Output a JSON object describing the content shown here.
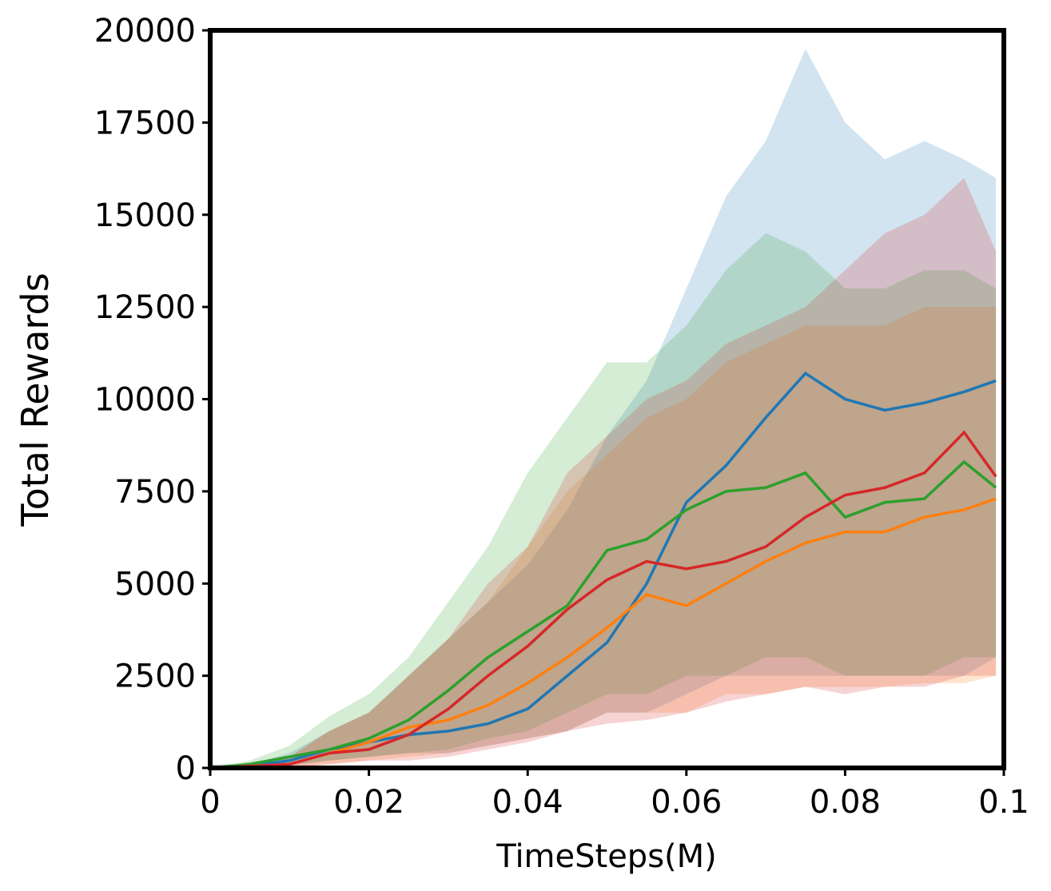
{
  "chart_data": {
    "type": "line",
    "x_label": "TimeSteps(M)",
    "y_label": "Total Rewards",
    "x": [
      0,
      0.005,
      0.01,
      0.015,
      0.02,
      0.025,
      0.03,
      0.035,
      0.04,
      0.045,
      0.05,
      0.055,
      0.06,
      0.065,
      0.07,
      0.075,
      0.08,
      0.085,
      0.09,
      0.095,
      0.099
    ],
    "xlim": [
      0,
      0.1
    ],
    "xticks": [
      0,
      0.02,
      0.04,
      0.06,
      0.08,
      0.1
    ],
    "ylim": [
      0,
      20000
    ],
    "yticks": [
      0,
      2500,
      5000,
      7500,
      10000,
      12500,
      15000,
      17500,
      20000
    ],
    "grid": false,
    "series": [
      {
        "color": "#1f77b4",
        "values": [
          0,
          50,
          200,
          500,
          700,
          900,
          1000,
          1200,
          1600,
          2500,
          3400,
          5000,
          7200,
          8200,
          9500,
          10700,
          10000,
          9700,
          9900,
          10200,
          10500
        ],
        "upper": [
          100,
          100,
          400,
          1000,
          1500,
          2500,
          3500,
          4500,
          5500,
          7000,
          9000,
          10500,
          13000,
          15500,
          17000,
          19500,
          17500,
          16500,
          17000,
          16500,
          16000
        ],
        "lower": [
          0,
          0,
          50,
          200,
          300,
          400,
          400,
          600,
          800,
          1000,
          1500,
          1500,
          2000,
          2500,
          2500,
          2500,
          2500,
          2500,
          2500,
          2500,
          3000
        ]
      },
      {
        "color": "#ff7f0e",
        "values": [
          0,
          30,
          100,
          400,
          700,
          1100,
          1300,
          1700,
          2300,
          3000,
          3800,
          4700,
          4400,
          5000,
          5600,
          6100,
          6400,
          6400,
          6800,
          7000,
          7300
        ],
        "upper": [
          0,
          100,
          300,
          1000,
          1500,
          2500,
          3500,
          4500,
          6000,
          7500,
          8500,
          9500,
          10000,
          11000,
          11500,
          12000,
          12000,
          12000,
          12500,
          12500,
          12500
        ],
        "lower": [
          0,
          0,
          0,
          100,
          200,
          300,
          400,
          600,
          800,
          1000,
          1500,
          1500,
          1500,
          2000,
          2000,
          2200,
          2200,
          2200,
          2300,
          2300,
          2500
        ]
      },
      {
        "color": "#2ca02c",
        "values": [
          0,
          100,
          300,
          500,
          800,
          1300,
          2100,
          3000,
          3700,
          4400,
          5900,
          6200,
          7000,
          7500,
          7600,
          8000,
          6800,
          7200,
          7300,
          8300,
          7600
        ],
        "upper": [
          0,
          200,
          600,
          1400,
          2000,
          3000,
          4500,
          6000,
          8000,
          9500,
          11000,
          11000,
          12000,
          13500,
          14500,
          14000,
          13000,
          13000,
          13500,
          13500,
          13000
        ],
        "lower": [
          0,
          0,
          100,
          200,
          300,
          400,
          500,
          800,
          1000,
          1500,
          2000,
          2000,
          2500,
          2500,
          3000,
          3000,
          2500,
          2500,
          2500,
          3000,
          3000
        ]
      },
      {
        "color": "#d62728",
        "values": [
          0,
          50,
          100,
          400,
          500,
          900,
          1600,
          2500,
          3300,
          4300,
          5100,
          5600,
          5400,
          5600,
          6000,
          6800,
          7400,
          7600,
          8000,
          9100,
          7900
        ],
        "upper": [
          0,
          150,
          300,
          1000,
          1500,
          2500,
          3500,
          5000,
          6000,
          8000,
          9000,
          10000,
          10500,
          11500,
          12000,
          12500,
          13500,
          14500,
          15000,
          16000,
          14000
        ],
        "lower": [
          0,
          0,
          0,
          100,
          200,
          200,
          300,
          500,
          700,
          1000,
          1200,
          1300,
          1500,
          1800,
          2000,
          2200,
          2000,
          2200,
          2200,
          2500,
          2500
        ]
      }
    ]
  }
}
